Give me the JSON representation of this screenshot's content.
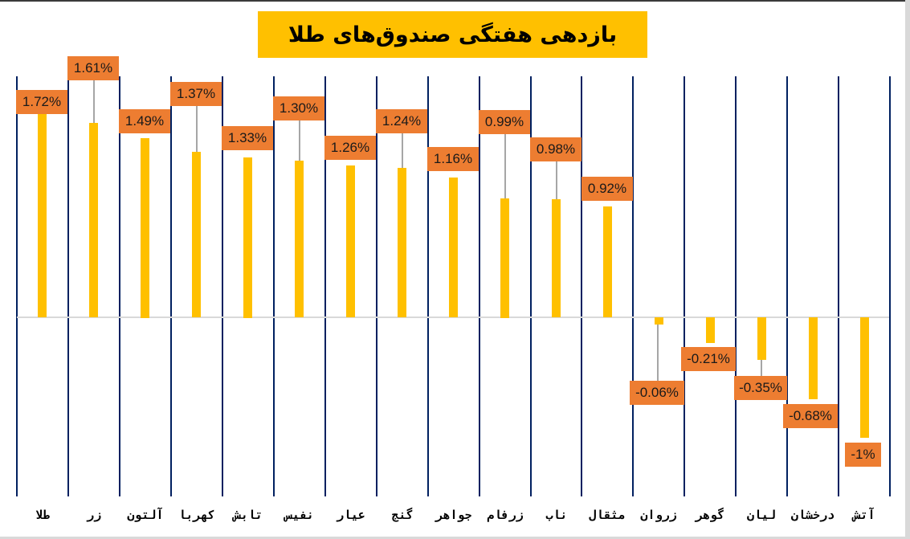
{
  "chart_data": {
    "type": "bar",
    "title": "بازدهی هفتگی صندوق‌های طلا",
    "xlabel": "",
    "ylabel": "",
    "grid": "vertical category separators",
    "legend": "none",
    "y_axis_visible": false,
    "categories": [
      "طلا",
      "زر",
      "آلتون",
      "کهربا",
      "تابش",
      "نفیس",
      "عیار",
      "گنج",
      "جواهر",
      "زرفام",
      "ناب",
      "مثقال",
      "زروان",
      "گوهر",
      "لیان",
      "درخشان",
      "آتش"
    ],
    "values": [
      1.72,
      1.61,
      1.49,
      1.37,
      1.33,
      1.3,
      1.26,
      1.24,
      1.16,
      0.99,
      0.98,
      0.92,
      -0.06,
      -0.21,
      -0.35,
      -0.68,
      -1.0
    ],
    "data_labels": [
      "1.72%",
      "1.61%",
      "1.49%",
      "1.37%",
      "1.33%",
      "1.30%",
      "1.26%",
      "1.24%",
      "1.16%",
      "0.99%",
      "0.98%",
      "0.92%",
      "-0.06%",
      "-0.21%",
      "-0.35%",
      "-0.68%",
      "-1%"
    ],
    "unit": "%",
    "colors": {
      "bar": "#FFC000",
      "label_box": "#ED7D31",
      "gridline": "#002060",
      "zero_line": "#D9D9D9",
      "title_bg": "#FFC000"
    }
  }
}
